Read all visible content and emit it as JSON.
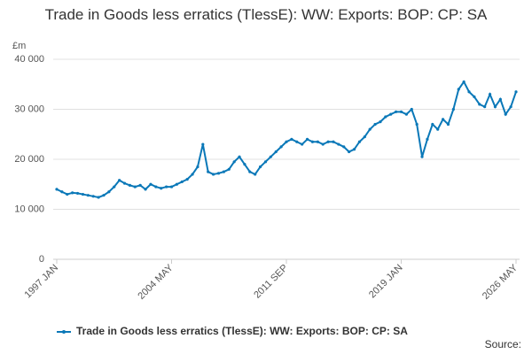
{
  "chart_data": {
    "type": "line",
    "title": "Trade in Goods less erratics (TlessE): WW: Exports: BOP: CP: SA",
    "y_unit_label": "£m",
    "source": "Source:",
    "categories": [
      "1997 JAN",
      null,
      null,
      null,
      null,
      null,
      null,
      null,
      null,
      null,
      null,
      null,
      null,
      null,
      null,
      null,
      null,
      null,
      null,
      null,
      null,
      null,
      "2004 MAY",
      null,
      null,
      null,
      null,
      null,
      null,
      null,
      null,
      null,
      null,
      null,
      null,
      null,
      null,
      null,
      null,
      null,
      null,
      null,
      null,
      null,
      "2011 SEP",
      null,
      null,
      null,
      null,
      null,
      null,
      null,
      null,
      null,
      null,
      null,
      null,
      null,
      null,
      null,
      null,
      null,
      null,
      null,
      null,
      null,
      "2019 JAN",
      null,
      null,
      null,
      null,
      null,
      null,
      null,
      null,
      null,
      null,
      null,
      null,
      null,
      null,
      null,
      null,
      null,
      null,
      null,
      null,
      null,
      "2026 MAY"
    ],
    "series": [
      {
        "name": "Trade in Goods less erratics (TlessE): WW: Exports: BOP: CP: SA",
        "color": "#0a78b8",
        "values": [
          14000,
          13500,
          13000,
          13300,
          13200,
          13000,
          12800,
          12600,
          12400,
          12800,
          13500,
          14500,
          15800,
          15200,
          14800,
          14500,
          14800,
          14000,
          15000,
          14500,
          14200,
          14500,
          14500,
          15000,
          15500,
          16000,
          17000,
          18500,
          23000,
          17500,
          17000,
          17200,
          17500,
          18000,
          19500,
          20500,
          19000,
          17500,
          17000,
          18500,
          19500,
          20500,
          21500,
          22500,
          23500,
          24000,
          23500,
          23000,
          24000,
          23500,
          23500,
          23000,
          23500,
          23500,
          23000,
          22500,
          21500,
          22000,
          23500,
          24500,
          26000,
          27000,
          27500,
          28500,
          29000,
          29500,
          29500,
          29000,
          30000,
          27000,
          20500,
          24000,
          27000,
          26000,
          28000,
          27000,
          30000,
          34000,
          35500,
          33500,
          32500,
          31000,
          30500,
          33000,
          30500,
          32000,
          29000,
          30500,
          33500
        ]
      }
    ],
    "ylim": [
      0,
      40000
    ],
    "yticks": [
      0,
      {
        "value": 10000,
        "label": "10 000"
      },
      {
        "value": 20000,
        "label": "20 000"
      },
      {
        "value": 30000,
        "label": "30 000"
      },
      {
        "value": 40000,
        "label": "40 000"
      }
    ],
    "grid": true
  }
}
